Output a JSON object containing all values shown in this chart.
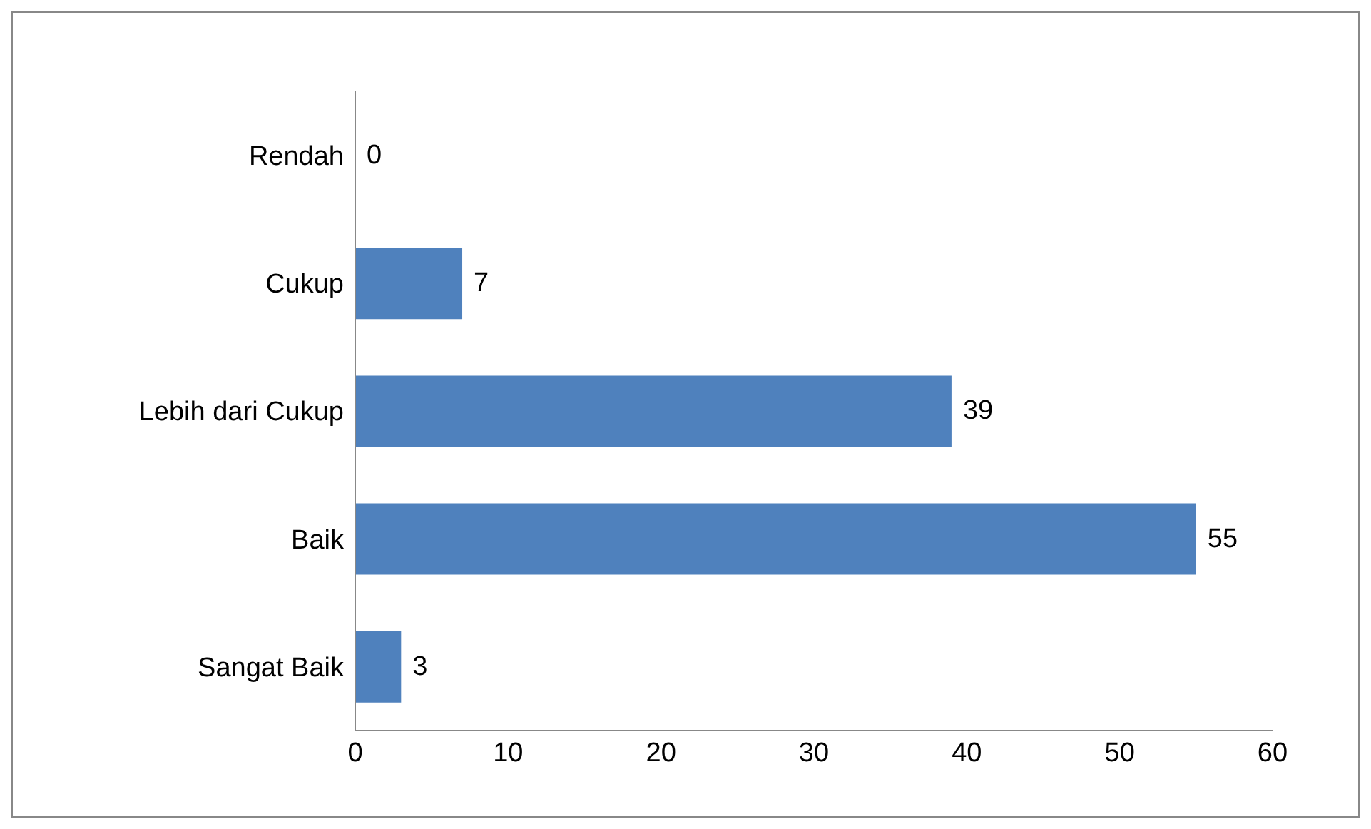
{
  "chart_data": {
    "type": "bar",
    "orientation": "horizontal",
    "categories": [
      "Rendah",
      "Cukup",
      "Lebih dari Cukup",
      "Baik",
      "Sangat Baik"
    ],
    "values": [
      0,
      7,
      39,
      55,
      3
    ],
    "color": "#4f81bd",
    "xlim": [
      0,
      60
    ],
    "xticks": [
      0,
      10,
      20,
      30,
      40,
      50,
      60
    ],
    "data_labels": true,
    "grid": false
  }
}
